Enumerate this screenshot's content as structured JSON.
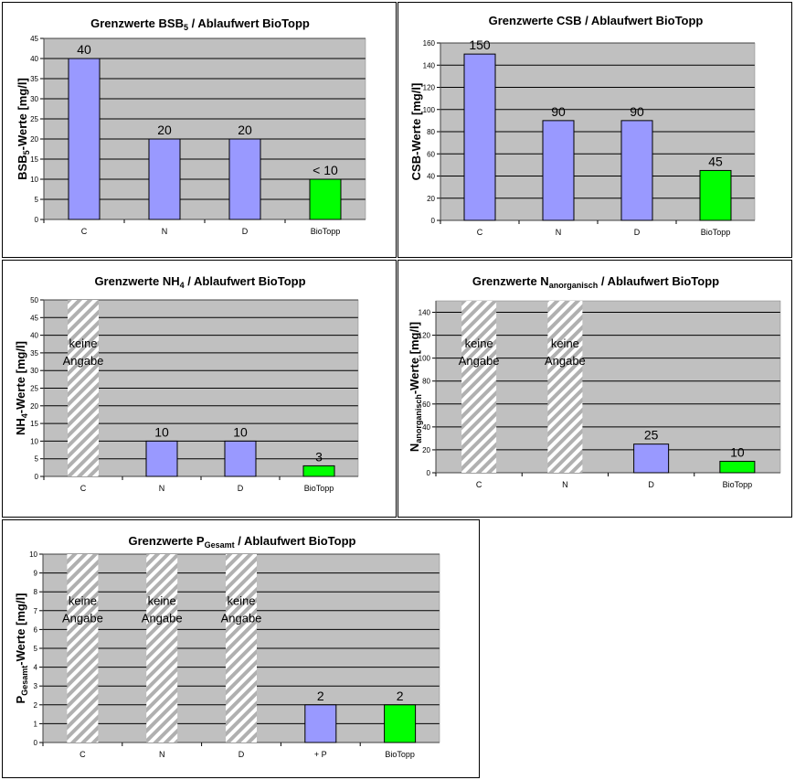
{
  "colors": {
    "plot_bg": "#c0c0c0",
    "grid": "#000000",
    "limit_bar": "#9999ff",
    "biotopp_bar": "#00ff00",
    "hatch_bg": "#ffffff",
    "hatch_line": "#b0b0b0"
  },
  "no_data_text": [
    "keine",
    "Angabe"
  ],
  "chart_data": [
    {
      "type": "bar",
      "title": "Grenzwerte BSB",
      "title_sub": "5",
      "title_rest": " / Ablaufwert BioTopp",
      "ylabel": "BSB",
      "ylabel_sub": "5",
      "ylabel_rest": "-Werte [mg/l]",
      "ylim": [
        0,
        45
      ],
      "yticks": [
        0,
        5,
        10,
        15,
        20,
        25,
        30,
        35,
        40,
        45
      ],
      "grid": true,
      "categories": [
        "C",
        "N",
        "D",
        "BioTopp"
      ],
      "values": [
        40,
        20,
        20,
        10
      ],
      "labels": [
        "40",
        "20",
        "20",
        "< 10"
      ],
      "kinds": [
        "limit",
        "limit",
        "limit",
        "biotopp"
      ]
    },
    {
      "type": "bar",
      "title": "Grenzwerte CSB / Ablaufwert BioTopp",
      "title_sub": "",
      "title_rest": "",
      "ylabel": "CSB-Werte [mg/l]",
      "ylabel_sub": "",
      "ylabel_rest": "",
      "ylim": [
        0,
        160
      ],
      "yticks": [
        0,
        20,
        40,
        60,
        80,
        100,
        120,
        140,
        160
      ],
      "grid": true,
      "categories": [
        "C",
        "N",
        "D",
        "BioTopp"
      ],
      "values": [
        150,
        90,
        90,
        45
      ],
      "labels": [
        "150",
        "90",
        "90",
        "45"
      ],
      "kinds": [
        "limit",
        "limit",
        "limit",
        "biotopp"
      ]
    },
    {
      "type": "bar",
      "title": "Grenzwerte NH",
      "title_sub": "4",
      "title_rest": " / Ablaufwert BioTopp",
      "ylabel": "NH",
      "ylabel_sub": "4",
      "ylabel_rest": "-Werte [mg/l]",
      "ylim": [
        0,
        50
      ],
      "yticks": [
        0,
        5,
        10,
        15,
        20,
        25,
        30,
        35,
        40,
        45,
        50
      ],
      "grid": true,
      "categories": [
        "C",
        "N",
        "D",
        "BioTopp"
      ],
      "values": [
        null,
        10,
        10,
        3
      ],
      "labels": [
        "",
        "10",
        "10",
        "3"
      ],
      "kinds": [
        "na",
        "limit",
        "limit",
        "biotopp"
      ]
    },
    {
      "type": "bar",
      "title": "Grenzwerte N",
      "title_sub": "anorganisch",
      "title_rest": " / Ablaufwert BioTopp",
      "ylabel": "N",
      "ylabel_sub": "anorganisch",
      "ylabel_rest": "-Werte [mg/l]",
      "ylim": [
        0,
        150
      ],
      "yticks": [
        0,
        20,
        40,
        60,
        80,
        100,
        120,
        140
      ],
      "grid": true,
      "categories": [
        "C",
        "N",
        "D",
        "BioTopp"
      ],
      "values": [
        null,
        null,
        25,
        10
      ],
      "labels": [
        "",
        "",
        "25",
        "10"
      ],
      "kinds": [
        "na",
        "na",
        "limit",
        "biotopp"
      ]
    },
    {
      "type": "bar",
      "title": "Grenzwerte P",
      "title_sub": "Gesamt",
      "title_rest": " / Ablaufwert BioTopp",
      "ylabel": "P",
      "ylabel_sub": "Gesamt",
      "ylabel_rest": "-Werte [mg/l]",
      "ylim": [
        0,
        10
      ],
      "yticks": [
        0,
        1,
        2,
        3,
        4,
        5,
        6,
        7,
        8,
        9,
        10
      ],
      "grid": true,
      "categories": [
        "C",
        "N",
        "D",
        "+ P",
        "BioTopp"
      ],
      "values": [
        null,
        null,
        null,
        2,
        2
      ],
      "labels": [
        "",
        "",
        "",
        "2",
        "2"
      ],
      "kinds": [
        "na",
        "na",
        "na",
        "limit",
        "biotopp"
      ]
    }
  ]
}
